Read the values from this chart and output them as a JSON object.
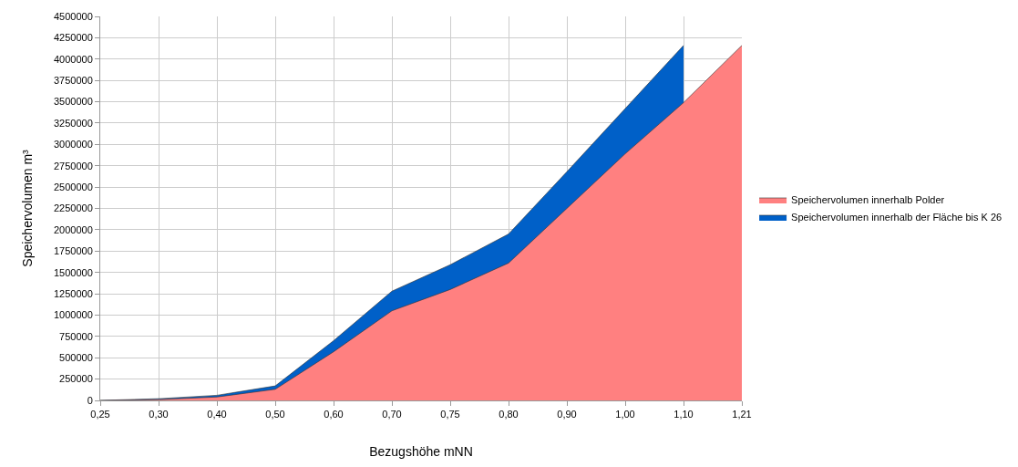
{
  "chart_data": {
    "type": "area",
    "xlabel": "Bezugshöhe mNN",
    "ylabel": "Speichervolumen m³",
    "categories": [
      "0,25",
      "0,30",
      "0,40",
      "0,50",
      "0,60",
      "0,70",
      "0,75",
      "0,80",
      "0,90",
      "1,00",
      "1,10",
      "1,21"
    ],
    "series": [
      {
        "name": "Speichervolumen innerhalb Polder",
        "color": "#ff8080",
        "values": [
          0,
          10000,
          40000,
          130000,
          570000,
          1050000,
          1300000,
          1610000,
          2250000,
          2890000,
          3490000,
          4160000
        ]
      },
      {
        "name": "Speichervolumen innerhalb der Fläche bis K 26",
        "color": "#0060c8",
        "values": [
          0,
          20000,
          60000,
          170000,
          700000,
          1280000,
          1590000,
          1950000,
          2680000,
          3420000,
          4160000,
          null
        ]
      }
    ],
    "ylim": [
      0,
      4500000
    ],
    "yticks": [
      0,
      250000,
      500000,
      750000,
      1000000,
      1250000,
      1500000,
      1750000,
      2000000,
      2250000,
      2500000,
      2750000,
      3000000,
      3250000,
      3500000,
      3750000,
      4000000,
      4250000,
      4500000
    ],
    "grid": true,
    "legend": "right"
  }
}
